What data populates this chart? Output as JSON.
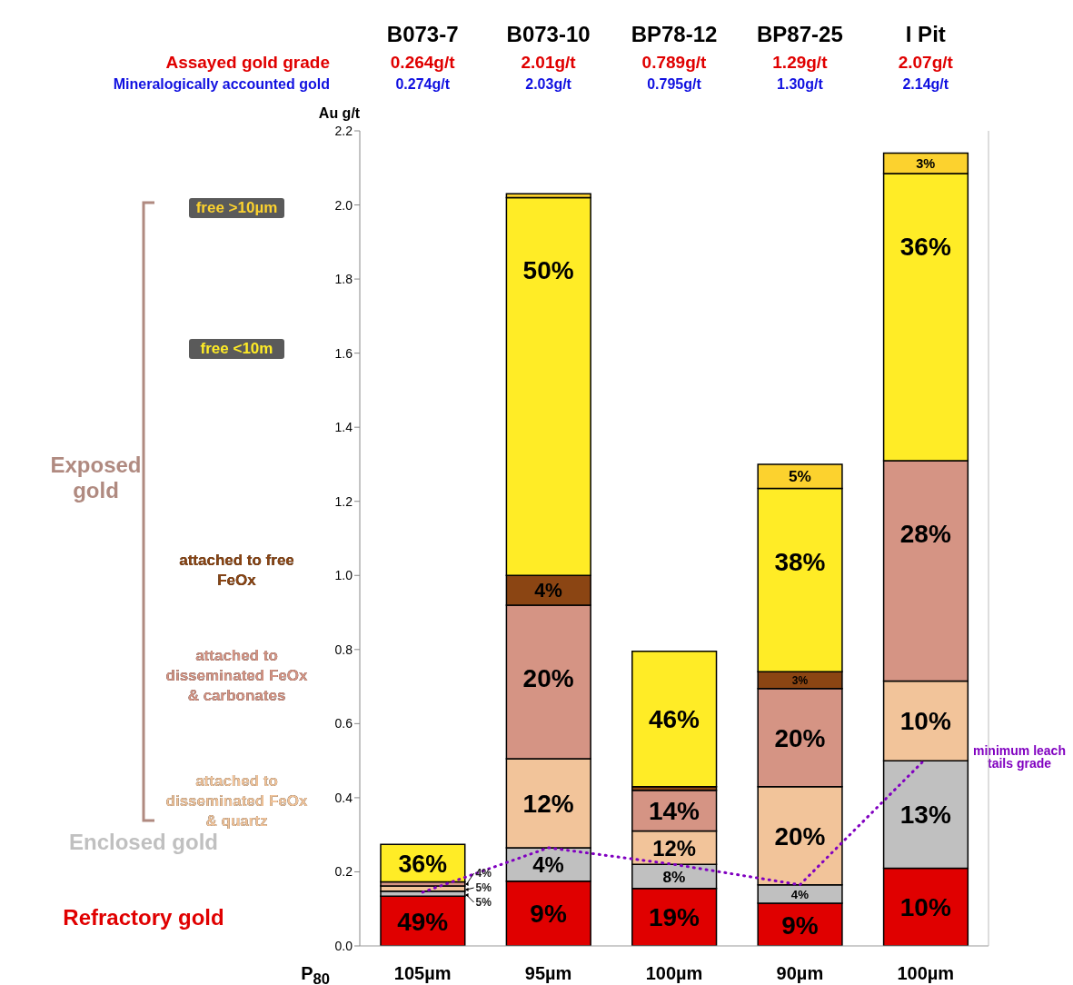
{
  "chart_data": {
    "type": "bar",
    "stacked": true,
    "ylabel": "Au g/t",
    "categories": [
      "B073-7",
      "B073-10",
      "BP78-12",
      "BP87-25",
      "I Pit"
    ],
    "ylim": [
      0,
      2.2
    ],
    "yticks": [
      {
        "value": 0,
        "label": "0.0"
      },
      {
        "value": 0.2,
        "label": "0.2"
      },
      {
        "value": 0.4,
        "label": "0.4"
      },
      {
        "value": 0.6,
        "label": "0.6"
      },
      {
        "value": 0.8,
        "label": "0.8"
      },
      {
        "value": 1,
        "label": "1.0"
      },
      {
        "value": 1.2,
        "label": "1.2"
      },
      {
        "value": 1.4,
        "label": "1.4"
      },
      {
        "value": 1.6,
        "label": "1.6"
      },
      {
        "value": 1.8,
        "label": "1.8"
      },
      {
        "value": 2,
        "label": "2.0"
      },
      {
        "value": 2.2,
        "label": "2.2"
      }
    ],
    "legend": "left",
    "grid": false,
    "series": [
      {
        "name": "Refractory gold",
        "color": "#e00000",
        "values": [
          0.134,
          0.175,
          0.155,
          0.115,
          0.21
        ]
      },
      {
        "name": "Enclosed gold",
        "color": "#c0c0c0",
        "values": [
          0.014,
          0.09,
          0.065,
          0.05,
          0.29
        ]
      },
      {
        "name": "attached to disseminated FeOx & quartz",
        "color": "#f2c49a",
        "values": [
          0.014,
          0.24,
          0.09,
          0.265,
          0.215
        ]
      },
      {
        "name": "attached to disseminated  FeOx & carbonates",
        "color": "#d59484",
        "values": [
          0.011,
          0.415,
          0.11,
          0.265,
          0.595
        ]
      },
      {
        "name": "attached to free FeOx",
        "color": "#8b4513",
        "values": [
          null,
          0.08,
          0.01,
          0.045,
          null
        ]
      },
      {
        "name": "free <10m",
        "color": "#ffec26",
        "values": [
          0.101,
          1.02,
          0.365,
          0.495,
          0.775
        ]
      },
      {
        "name": "free >10µm",
        "color": "#fcd22e",
        "values": [
          null,
          0.01,
          null,
          0.065,
          0.055
        ]
      },
      {
        "name": "minimum leach tails grade",
        "type": "line",
        "color": "#8000c0",
        "line_style": "dotted",
        "marker": "none",
        "values": [
          0.145,
          0.265,
          0.22,
          0.165,
          0.505
        ]
      }
    ],
    "annotations": [
      "Assayed gold grade",
      "0.264g/t",
      "2.01g/t",
      "0.789g/t",
      "1.29g/t",
      "2.07g/t",
      "Mineralogically accounted gold",
      "0.274g/t",
      "2.03g/t",
      "0.795g/t",
      "1.30g/t",
      "2.14g/t",
      "P$_{80}$",
      "105µm",
      "95µm",
      "100µm",
      "90µm",
      "100µm",
      "Exposed gold",
      "5%",
      "5%",
      "4%",
      {
        "text": "49%",
        "x": "B073-7",
        "y": 0.134
      },
      {
        "text": "36%",
        "x": "B073-7",
        "y": 0.274
      },
      {
        "text": "9%",
        "x": "B073-10",
        "y": 0.175
      },
      {
        "text": "4%",
        "x": "B073-10",
        "y": 0.265
      },
      {
        "text": "12%",
        "x": "B073-10",
        "y": 0.505
      },
      {
        "text": "20%",
        "x": "B073-10",
        "y": 0.92
      },
      {
        "text": "4%",
        "x": "B073-10",
        "y": 1.0
      },
      {
        "text": "50%",
        "x": "B073-10",
        "y": 2.02
      },
      {
        "text": "19%",
        "x": "BP78-12",
        "y": 0.155
      },
      {
        "text": "8%",
        "x": "BP78-12",
        "y": 0.22
      },
      {
        "text": "12%",
        "x": "BP78-12",
        "y": 0.31
      },
      {
        "text": "14%",
        "x": "BP78-12",
        "y": 0.42
      },
      {
        "text": "46%",
        "x": "BP78-12",
        "y": 0.795
      },
      {
        "text": "9%",
        "x": "BP87-25",
        "y": 0.115
      },
      {
        "text": "4%",
        "x": "BP87-25",
        "y": 0.165
      },
      {
        "text": "20%",
        "x": "BP87-25",
        "y": 0.695
      },
      {
        "text": "20%",
        "x": "BP87-25",
        "y": 0.43
      },
      {
        "text": "3%",
        "x": "BP87-25",
        "y": 0.74
      },
      {
        "text": "38%",
        "x": "BP87-25",
        "y": 1.235
      },
      {
        "text": "5%",
        "x": "BP87-25",
        "y": 1.3
      },
      {
        "text": "10%",
        "x": "I Pit",
        "y": 0.21
      },
      {
        "text": "13%",
        "x": "I Pit",
        "y": 0.5
      },
      {
        "text": "10%",
        "x": "I Pit",
        "y": 0.715
      },
      {
        "text": "28%",
        "x": "I Pit",
        "y": 1.31
      },
      {
        "text": "36%",
        "x": "I Pit",
        "y": 2.085
      },
      {
        "text": "3%",
        "x": "I Pit",
        "y": 2.14
      }
    ]
  }
}
